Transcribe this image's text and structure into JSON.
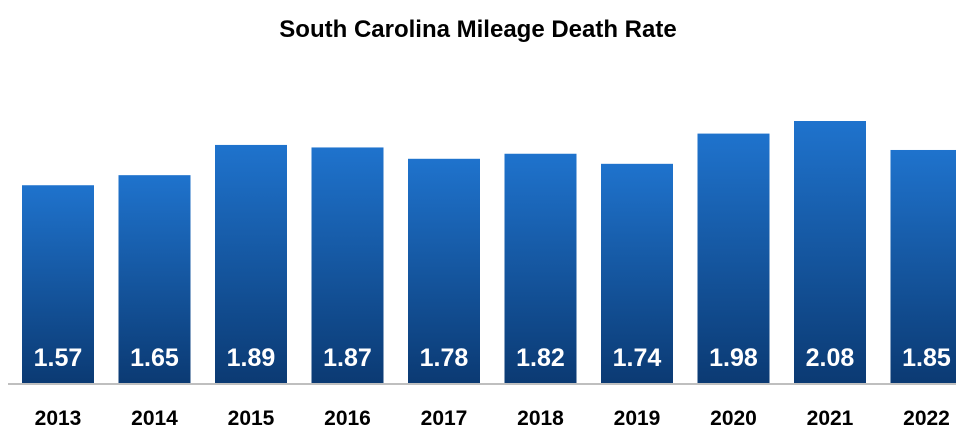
{
  "chart_data": {
    "type": "bar",
    "title": "South Carolina Mileage Death Rate",
    "xlabel": "",
    "ylabel": "",
    "categories": [
      "2013",
      "2014",
      "2015",
      "2016",
      "2017",
      "2018",
      "2019",
      "2020",
      "2021",
      "2022"
    ],
    "values": [
      1.57,
      1.65,
      1.89,
      1.87,
      1.78,
      1.82,
      1.74,
      1.98,
      2.08,
      1.85
    ],
    "data_labels": [
      "1.57",
      "1.65",
      "1.89",
      "1.87",
      "1.78",
      "1.82",
      "1.74",
      "1.98",
      "2.08",
      "1.85"
    ],
    "ylim": [
      0,
      2.08
    ],
    "grid": false,
    "legend": "none",
    "colors": {
      "bar_top": "#1f73cd",
      "bar_bottom": "#0b3a73",
      "baseline": "#bfbfbf",
      "label_text": "#ffffff",
      "axis_text": "#000000"
    }
  }
}
